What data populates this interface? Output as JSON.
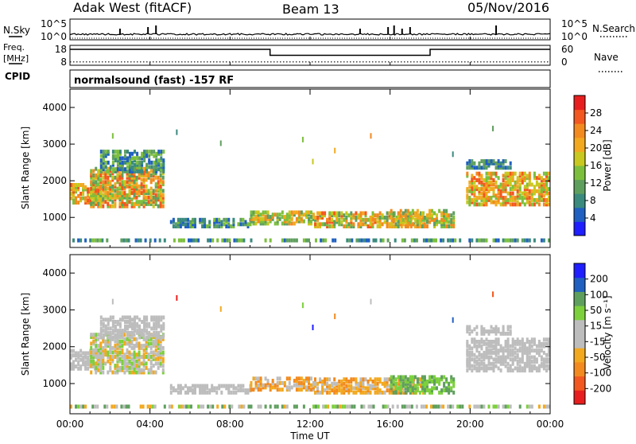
{
  "header": {
    "station": "Adak West (fitACF)",
    "beam": "Beam 13",
    "date": "05/Nov/2016"
  },
  "side_labels": {
    "nsky": "N.Sky",
    "freq_line1": "Freq.",
    "freq_line2": "[MHz]",
    "cpid": "CPID",
    "nsearch": "N.Search",
    "nave": "Nave"
  },
  "cpid_text": "normalsound (fast) -157 RF",
  "colors": {
    "power": [
      "#1f1fff",
      "#2060c0",
      "#3a8a7e",
      "#5f9f5e",
      "#7cbf3c",
      "#c8c81e",
      "#f2a91f",
      "#f28a1f",
      "#f2581f",
      "#e81e1e"
    ],
    "velocity": [
      "#e81e1e",
      "#f2581f",
      "#f28a1f",
      "#f2a91f",
      "#bdbdbd",
      "#bdbdbd",
      "#7cd03c",
      "#5f9f5e",
      "#2060c0",
      "#1f1fff"
    ]
  },
  "chart_data": [
    {
      "type": "line",
      "name": "nsky-nsearch",
      "y_ticks": [
        "10^5",
        "10^0"
      ],
      "right_y_ticks": [
        "10^5",
        "10^0"
      ],
      "xlim": [
        0,
        24
      ],
      "spikes_hours": [
        2.5,
        3.9,
        4.3,
        14.5,
        15.9,
        16.2,
        16.6,
        17.0,
        21.3
      ],
      "series": [
        {
          "name": "N.Sky"
        },
        {
          "name": "N.Search"
        }
      ]
    },
    {
      "type": "line",
      "name": "freq-nave",
      "y_ticks": [
        "18",
        "8"
      ],
      "right_y_ticks": [
        "60",
        "0"
      ],
      "xlim": [
        0,
        24
      ],
      "series": [
        {
          "name": "Freq.",
          "x": [
            0,
            10,
            10,
            18,
            18,
            24
          ],
          "y": [
            16,
            16,
            13,
            13,
            16,
            16
          ]
        },
        {
          "name": "Nave",
          "x": [
            0,
            24
          ],
          "y": [
            10,
            10
          ]
        }
      ]
    },
    {
      "type": "heatmap",
      "name": "power",
      "ylabel": "Slant Range [km]",
      "y_ticks": [
        "4000",
        "3000",
        "2000",
        "1000"
      ],
      "ylim": [
        180,
        4500
      ],
      "xlim": [
        0,
        24
      ],
      "colorbar_label": "Power [dB]",
      "colorbar_ticks": [
        "28",
        "24",
        "20",
        "16",
        "12",
        "8",
        "4"
      ],
      "colorbar_range": [
        0,
        32
      ]
    },
    {
      "type": "heatmap",
      "name": "velocity",
      "ylabel": "Slant Range [km]",
      "y_ticks": [
        "4000",
        "3000",
        "2000",
        "1000"
      ],
      "ylim": [
        180,
        4500
      ],
      "xlim": [
        0,
        24
      ],
      "x_ticks": [
        "00:00",
        "04:00",
        "08:00",
        "12:00",
        "16:00",
        "20:00",
        "00:00"
      ],
      "xlabel": "Time UT",
      "colorbar_label": "Velocity [m s⁻¹]",
      "colorbar_ticks": [
        "200",
        "100",
        "50",
        "15",
        "-15",
        "-50",
        "-100",
        "-200"
      ]
    }
  ]
}
